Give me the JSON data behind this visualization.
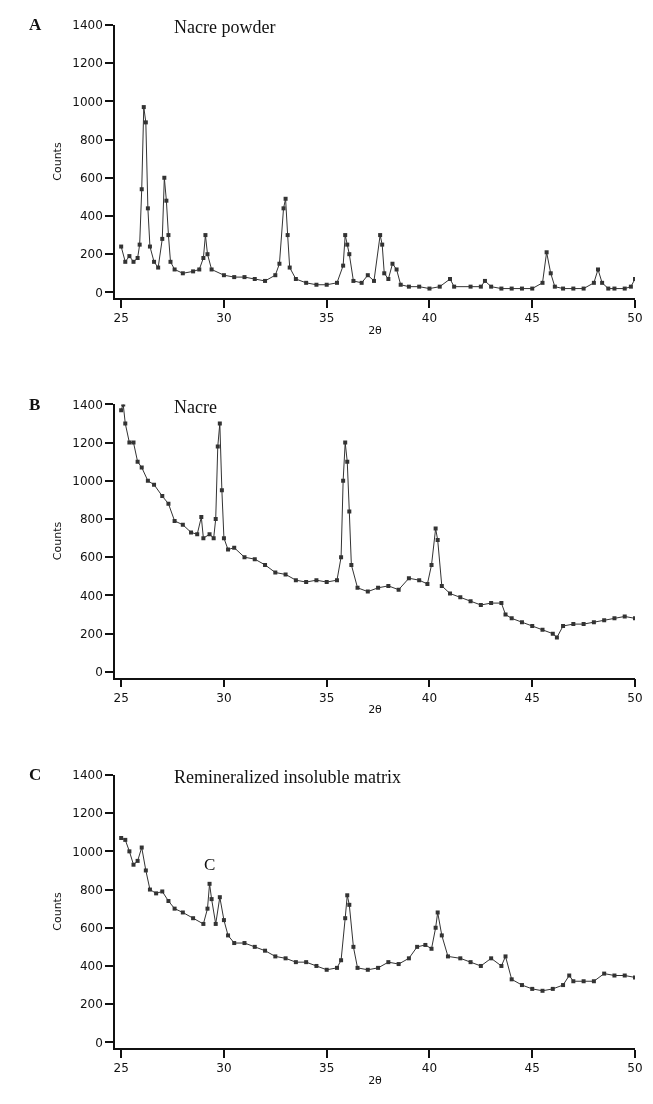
{
  "chart_data": [
    {
      "type": "line",
      "title": "A",
      "xlabel": "2θ",
      "ylabel": "Counts",
      "annotations": [
        "Nacre powder"
      ],
      "marker": "square",
      "line_style": "solid",
      "xlim": [
        24.7,
        50
      ],
      "ylim": [
        -30,
        1400
      ],
      "xticks": [
        25,
        30,
        35,
        40,
        45,
        50
      ],
      "yticks": [
        0,
        200,
        400,
        600,
        800,
        1000,
        1200,
        1400
      ],
      "x": [
        25.0,
        25.2,
        25.4,
        25.6,
        25.8,
        25.9,
        26.0,
        26.1,
        26.2,
        26.3,
        26.4,
        26.6,
        26.8,
        27.0,
        27.1,
        27.2,
        27.3,
        27.4,
        27.6,
        28.0,
        28.5,
        28.8,
        29.0,
        29.1,
        29.2,
        29.4,
        30.0,
        30.5,
        31.0,
        31.5,
        32.0,
        32.5,
        32.7,
        32.9,
        33.0,
        33.1,
        33.2,
        33.5,
        34.0,
        34.5,
        35.0,
        35.5,
        35.8,
        35.9,
        36.0,
        36.1,
        36.3,
        36.7,
        37.0,
        37.3,
        37.6,
        37.7,
        37.8,
        38.0,
        38.2,
        38.4,
        38.6,
        39.0,
        39.5,
        40.0,
        40.5,
        41.0,
        41.2,
        42.0,
        42.5,
        42.7,
        43.0,
        43.5,
        44.0,
        44.5,
        45.0,
        45.5,
        45.7,
        45.9,
        46.1,
        46.5,
        47.0,
        47.5,
        48.0,
        48.2,
        48.4,
        48.7,
        49.0,
        49.5,
        49.8,
        50.0
      ],
      "series": [
        {
          "color": "#333333",
          "values": [
            240,
            160,
            190,
            160,
            180,
            250,
            540,
            970,
            890,
            440,
            240,
            160,
            130,
            280,
            600,
            480,
            300,
            160,
            120,
            100,
            110,
            120,
            180,
            300,
            200,
            120,
            90,
            80,
            80,
            70,
            60,
            90,
            150,
            440,
            490,
            300,
            130,
            70,
            50,
            40,
            40,
            50,
            140,
            300,
            250,
            200,
            60,
            50,
            90,
            60,
            300,
            250,
            100,
            70,
            150,
            120,
            40,
            30,
            30,
            20,
            30,
            70,
            30,
            30,
            30,
            60,
            30,
            20,
            20,
            20,
            20,
            50,
            210,
            100,
            30,
            20,
            20,
            20,
            50,
            120,
            50,
            20,
            20,
            20,
            30,
            70
          ]
        }
      ]
    },
    {
      "type": "line",
      "title": "B",
      "xlabel": "2θ",
      "ylabel": "Counts",
      "annotations": [
        "Nacre"
      ],
      "marker": "square",
      "line_style": "solid",
      "xlim": [
        24.7,
        50
      ],
      "ylim": [
        -30,
        1400
      ],
      "xticks": [
        25,
        30,
        35,
        40,
        45,
        50
      ],
      "yticks": [
        0,
        200,
        400,
        600,
        800,
        1000,
        1200,
        1400
      ],
      "x": [
        25.0,
        25.1,
        25.2,
        25.4,
        25.6,
        25.8,
        26.0,
        26.3,
        26.6,
        27.0,
        27.3,
        27.6,
        28.0,
        28.4,
        28.7,
        28.9,
        29.0,
        29.3,
        29.5,
        29.6,
        29.7,
        29.8,
        29.9,
        30.0,
        30.2,
        30.5,
        31.0,
        31.5,
        32.0,
        32.5,
        33.0,
        33.5,
        34.0,
        34.5,
        35.0,
        35.5,
        35.7,
        35.8,
        35.9,
        36.0,
        36.1,
        36.2,
        36.5,
        37.0,
        37.5,
        38.0,
        38.5,
        39.0,
        39.5,
        39.9,
        40.1,
        40.3,
        40.4,
        40.6,
        41.0,
        41.5,
        42.0,
        42.5,
        43.0,
        43.5,
        43.7,
        44.0,
        44.5,
        45.0,
        45.5,
        46.0,
        46.2,
        46.5,
        47.0,
        47.5,
        48.0,
        48.5,
        49.0,
        49.5,
        50.0
      ],
      "series": [
        {
          "color": "#333333",
          "values": [
            1370,
            1400,
            1300,
            1200,
            1200,
            1100,
            1070,
            1000,
            980,
            920,
            880,
            790,
            770,
            730,
            720,
            810,
            700,
            720,
            700,
            800,
            1180,
            1300,
            950,
            700,
            640,
            650,
            600,
            590,
            560,
            520,
            510,
            480,
            470,
            480,
            470,
            480,
            600,
            1000,
            1200,
            1100,
            840,
            560,
            440,
            420,
            440,
            450,
            430,
            490,
            480,
            460,
            560,
            750,
            690,
            450,
            410,
            390,
            370,
            350,
            360,
            360,
            300,
            280,
            260,
            240,
            220,
            200,
            180,
            240,
            250,
            250,
            260,
            270,
            280,
            290,
            280
          ]
        }
      ]
    },
    {
      "type": "line",
      "title": "C",
      "xlabel": "2θ",
      "ylabel": "Counts",
      "annotations": [
        "Remineralized insoluble matrix",
        {
          "text": "C",
          "x": 29.3,
          "y": 830
        }
      ],
      "marker": "square",
      "line_style": "solid",
      "xlim": [
        24.7,
        50
      ],
      "ylim": [
        -30,
        1400
      ],
      "xticks": [
        25,
        30,
        35,
        40,
        45,
        50
      ],
      "yticks": [
        0,
        200,
        400,
        600,
        800,
        1000,
        1200,
        1400
      ],
      "x": [
        25.0,
        25.2,
        25.4,
        25.6,
        25.8,
        26.0,
        26.2,
        26.4,
        26.7,
        27.0,
        27.3,
        27.6,
        28.0,
        28.5,
        29.0,
        29.2,
        29.3,
        29.4,
        29.6,
        29.8,
        30.0,
        30.2,
        30.5,
        31.0,
        31.5,
        32.0,
        32.5,
        33.0,
        33.5,
        34.0,
        34.5,
        35.0,
        35.5,
        35.7,
        35.9,
        36.0,
        36.1,
        36.3,
        36.5,
        37.0,
        37.5,
        38.0,
        38.5,
        39.0,
        39.4,
        39.8,
        40.1,
        40.3,
        40.4,
        40.6,
        40.9,
        41.5,
        42.0,
        42.5,
        43.0,
        43.5,
        43.7,
        44.0,
        44.5,
        45.0,
        45.5,
        46.0,
        46.5,
        46.8,
        47.0,
        47.5,
        48.0,
        48.5,
        49.0,
        49.5,
        50.0
      ],
      "series": [
        {
          "color": "#333333",
          "values": [
            1070,
            1060,
            1000,
            930,
            950,
            1020,
            900,
            800,
            780,
            790,
            740,
            700,
            680,
            650,
            620,
            700,
            830,
            750,
            620,
            760,
            640,
            560,
            520,
            520,
            500,
            480,
            450,
            440,
            420,
            420,
            400,
            380,
            390,
            430,
            650,
            770,
            720,
            500,
            390,
            380,
            390,
            420,
            410,
            440,
            500,
            510,
            490,
            600,
            680,
            560,
            450,
            440,
            420,
            400,
            440,
            400,
            450,
            330,
            300,
            280,
            270,
            280,
            300,
            350,
            320,
            320,
            320,
            360,
            350,
            350,
            340
          ]
        }
      ]
    }
  ]
}
